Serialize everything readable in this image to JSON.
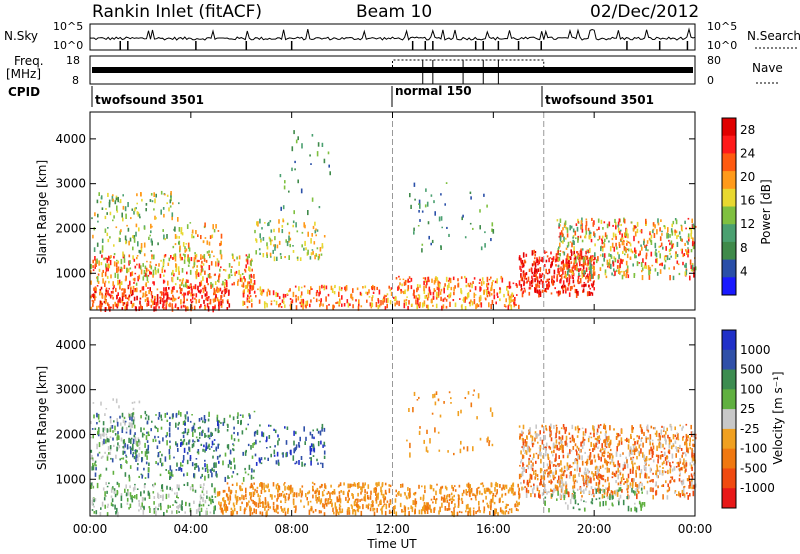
{
  "header": {
    "station": "Rankin Inlet (fitACF)",
    "beam": "Beam 10",
    "date": "02/Dec/2012"
  },
  "panel_labels": {
    "nsky": "N.Sky",
    "nsky_ticks": [
      "10^5",
      "10^0"
    ],
    "nsearch": "N.Search",
    "nsearch_ticks": [
      "10^5",
      "10^0"
    ],
    "freq_line1": "Freq.",
    "freq_line2": "[MHz]",
    "freq_ticks": [
      "18",
      "8"
    ],
    "nave": "Nave",
    "nave_ticks": [
      "80",
      "0"
    ],
    "cpid": "CPID"
  },
  "cpid_segments": [
    {
      "label": "twofsound 3501",
      "start_hour": 0.0
    },
    {
      "label": "normal 150",
      "start_hour": 12.0
    },
    {
      "label": "twofsound 3501",
      "start_hour": 18.0
    }
  ],
  "colors": {
    "frame": "#000000",
    "power_scale": [
      "#1a1aff",
      "#2a4fa8",
      "#3f8a4a",
      "#4aa070",
      "#7fc040",
      "#e8d830",
      "#ff9a1a",
      "#ff5a10",
      "#ff1a1a",
      "#e00000"
    ],
    "velocity_scale": [
      "#2030c8",
      "#3050a8",
      "#3c8c50",
      "#60b040",
      "#c8c8c8",
      "#f0a020",
      "#f07810",
      "#f04a10",
      "#e81818"
    ]
  },
  "chart_data": [
    {
      "type": "heatmap",
      "panel": "power",
      "title": "",
      "xlabel": "Time UT",
      "ylabel": "Slant Range [km]",
      "x_ticks": [
        "00:00",
        "04:00",
        "08:00",
        "12:00",
        "16:00",
        "20:00",
        "00:00"
      ],
      "y_ticks": [
        "1000",
        "2000",
        "3000",
        "4000"
      ],
      "xlim": [
        0,
        24
      ],
      "ylim": [
        180,
        4600
      ],
      "colorbar_label": "Power [dB]",
      "colorbar_ticks": [
        "4",
        "8",
        "12",
        "16",
        "20",
        "24",
        "28"
      ],
      "colorbar_range": [
        0,
        30
      ]
    },
    {
      "type": "heatmap",
      "panel": "velocity",
      "title": "",
      "xlabel": "Time UT",
      "ylabel": "Slant Range [km]",
      "x_ticks": [
        "00:00",
        "04:00",
        "08:00",
        "12:00",
        "16:00",
        "20:00",
        "00:00"
      ],
      "y_ticks": [
        "1000",
        "2000",
        "3000",
        "4000"
      ],
      "xlim": [
        0,
        24
      ],
      "ylim": [
        180,
        4600
      ],
      "colorbar_label": "Velocity [m s⁻¹]",
      "colorbar_ticks": [
        "1000",
        "500",
        "100",
        "25",
        "-25",
        "-100",
        "-500",
        "-1000"
      ]
    }
  ]
}
